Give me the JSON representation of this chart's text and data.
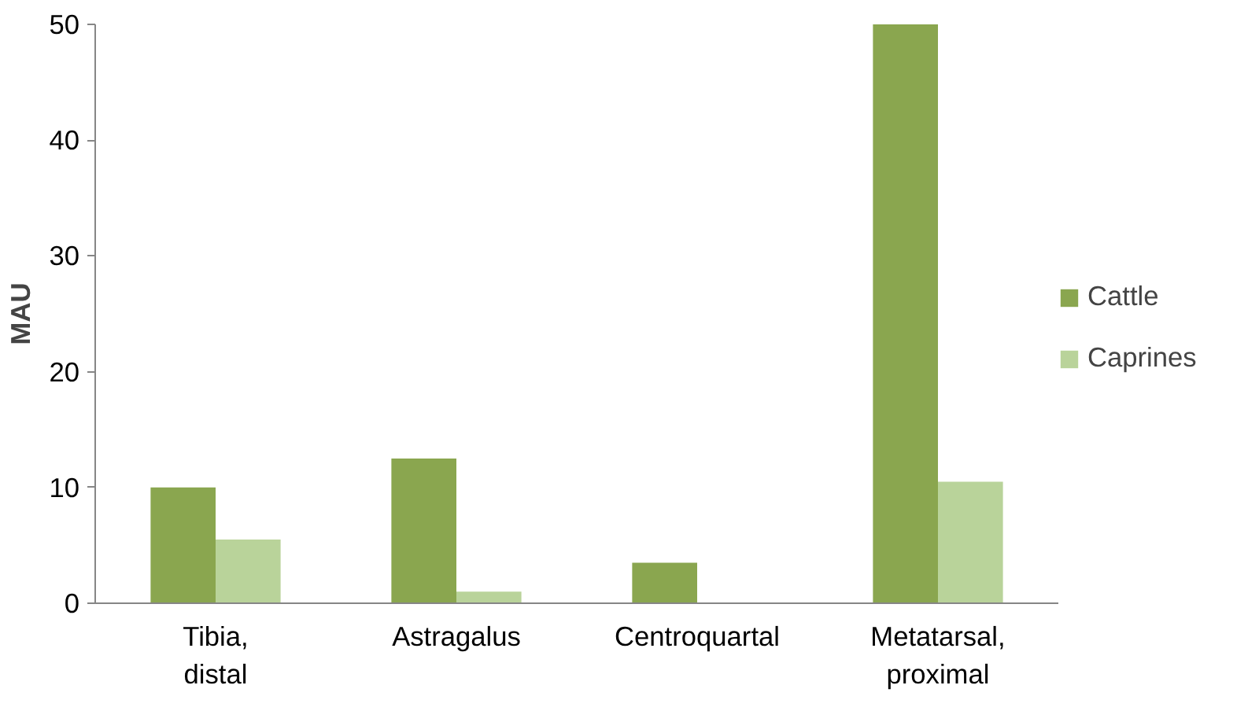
{
  "chart_data": {
    "type": "bar",
    "ylabel": "MAU",
    "categories": [
      "Tibia, distal",
      "Astragalus",
      "Centroquartal",
      "Metatarsal, proximal"
    ],
    "series": [
      {
        "name": "Cattle",
        "color": "#8aa64f",
        "values": [
          10,
          12.5,
          3.5,
          50
        ]
      },
      {
        "name": "Caprines",
        "color": "#b9d39a",
        "values": [
          5.5,
          1,
          0,
          10.5
        ]
      }
    ],
    "ylim": [
      0,
      50
    ],
    "yticks": [
      0,
      10,
      20,
      30,
      40,
      50
    ],
    "grid": false,
    "legend": "right"
  }
}
